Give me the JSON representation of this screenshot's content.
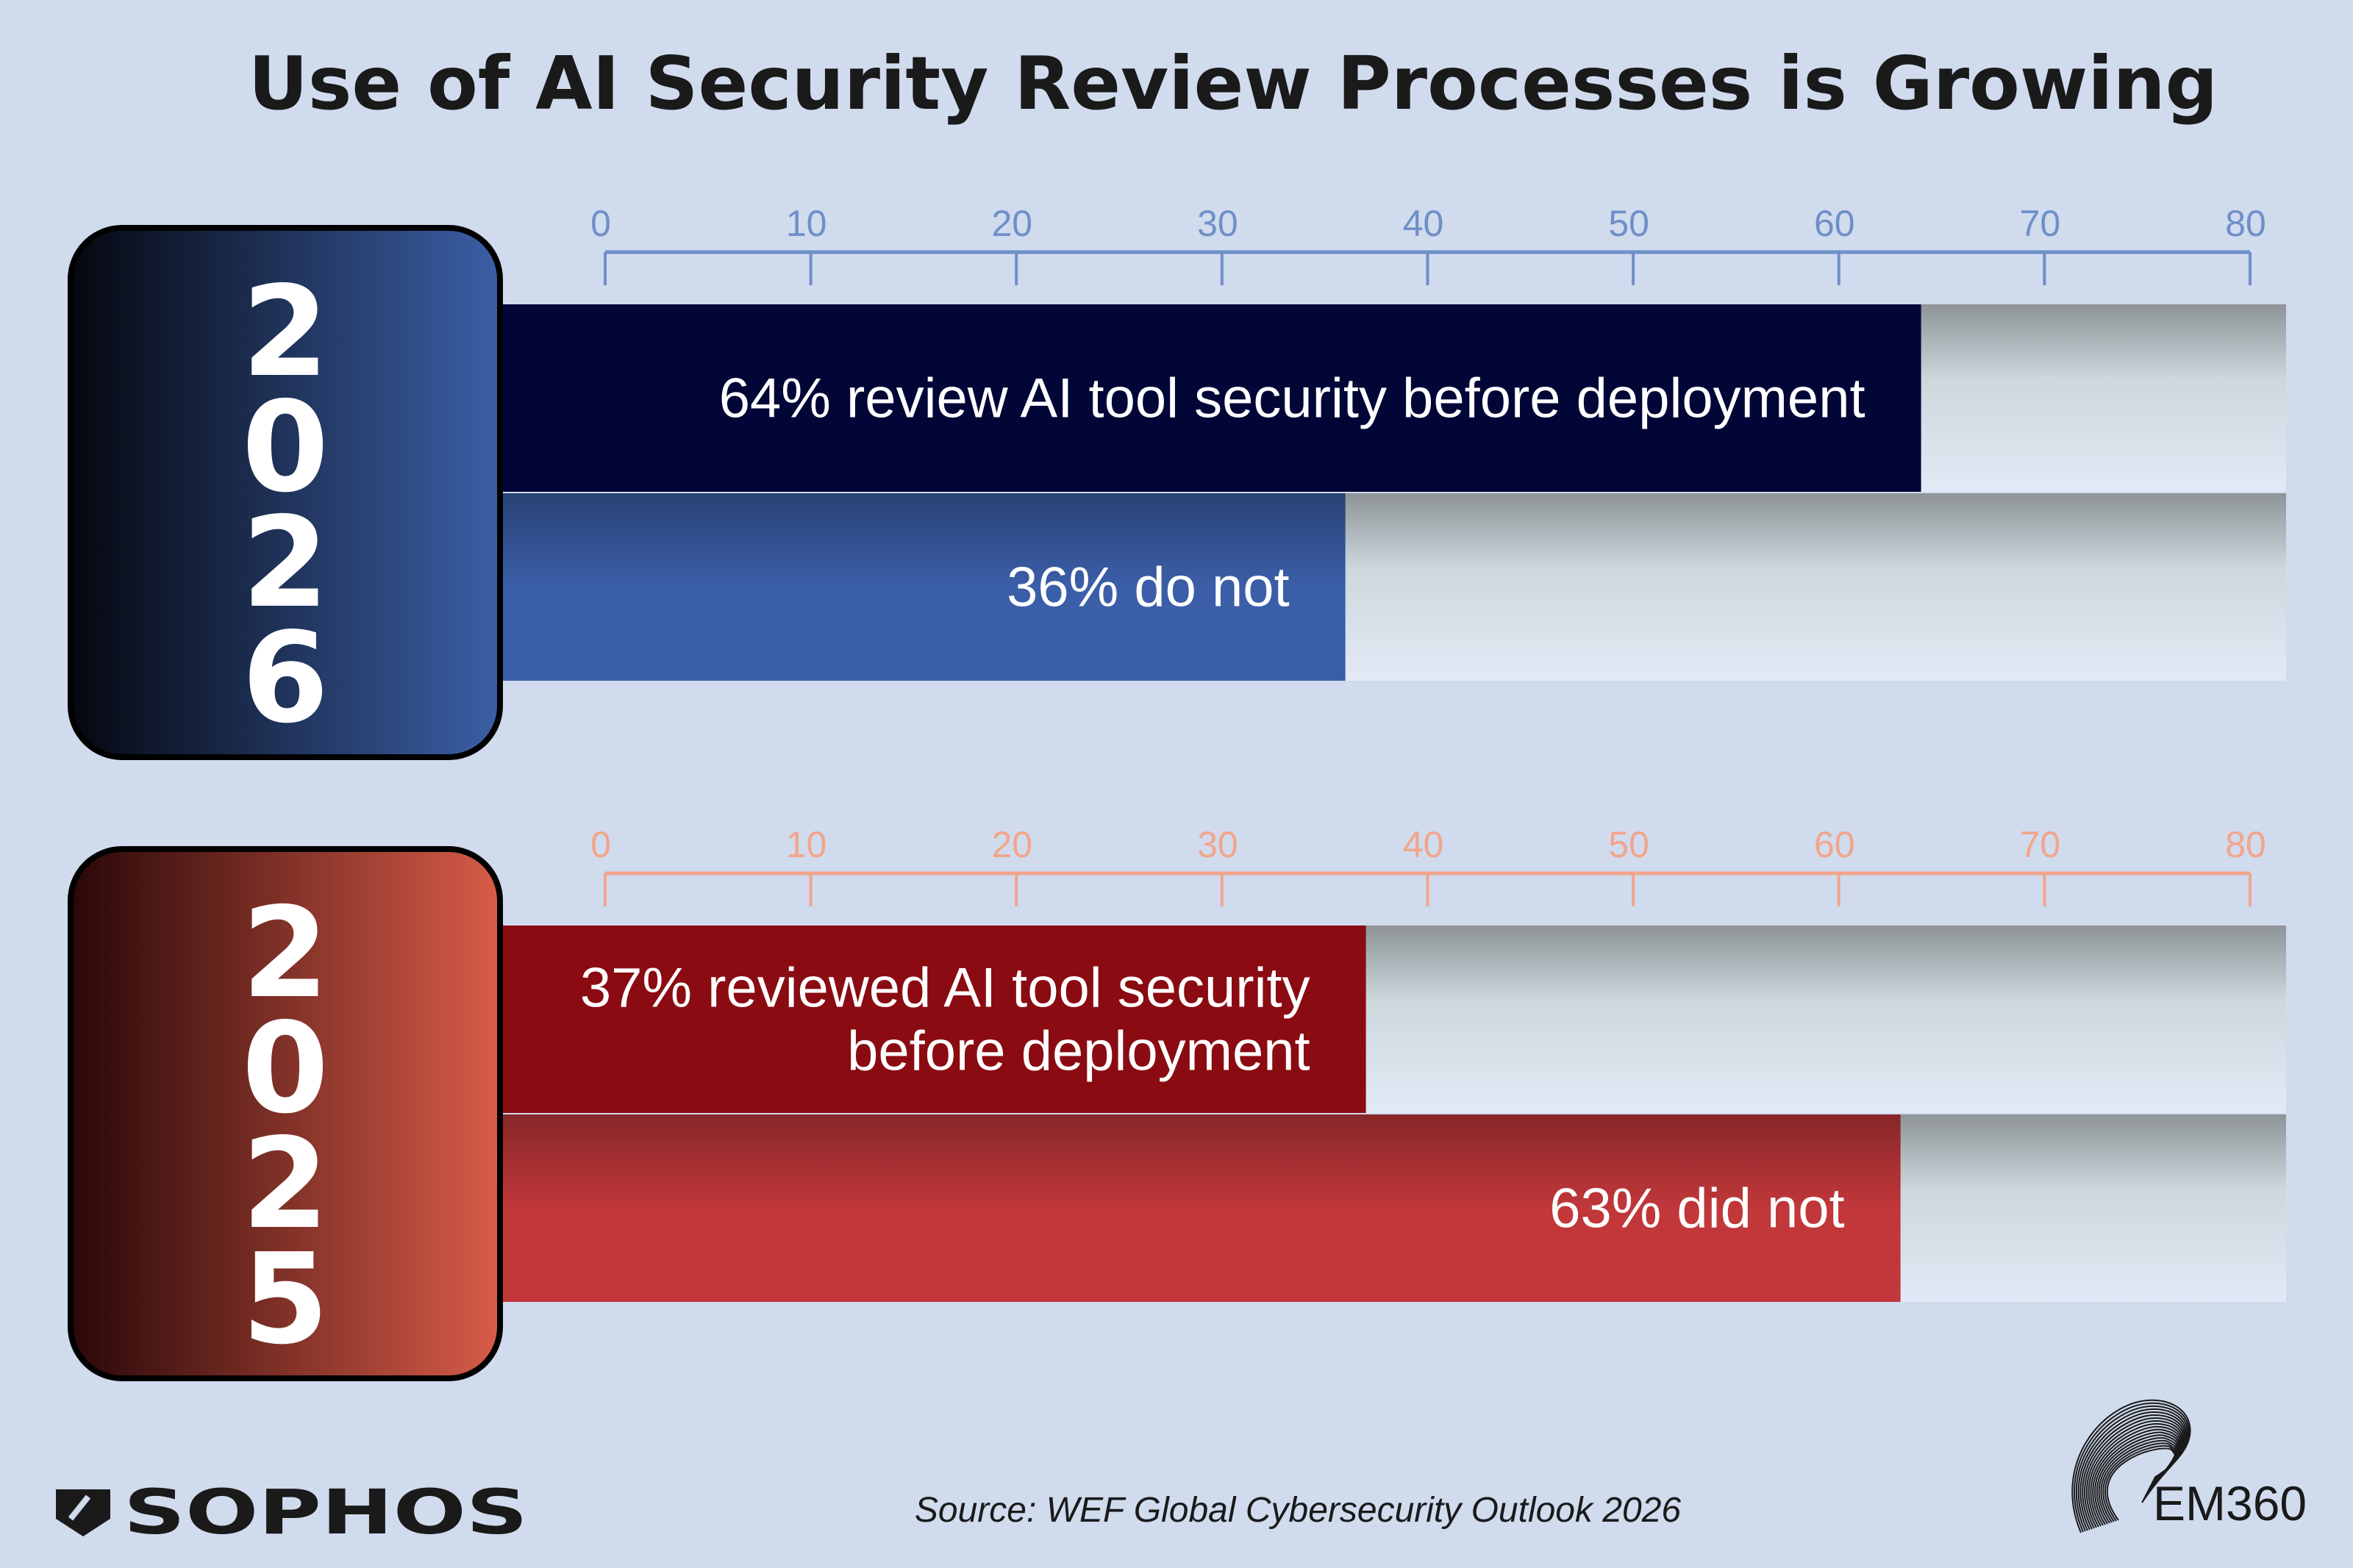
{
  "chart_data": {
    "type": "bar",
    "title": "Use of AI Security Review Processes is Growing",
    "xlim": [
      0,
      80
    ],
    "ticks": [
      "0",
      "10",
      "20",
      "30",
      "40",
      "50",
      "60",
      "70",
      "80"
    ],
    "grid": false,
    "groups": [
      {
        "year": "2026",
        "axis_color": "#6f8fc8",
        "card_colors": [
          "#05070f",
          "#3b5fa6"
        ],
        "bars": [
          {
            "value": 64,
            "label": [
              "64% review AI tool security before deployment"
            ],
            "color": "#020637"
          },
          {
            "value": 36,
            "label": [
              "36% do not"
            ],
            "color": "#3b5ea8"
          }
        ]
      },
      {
        "year": "2025",
        "axis_color": "#f2a58b",
        "card_colors": [
          "#2a0708",
          "#d85c48"
        ],
        "bars": [
          {
            "value": 37,
            "label": [
              "37% reviewed AI tool security",
              "before deployment"
            ],
            "color": "#8a0b12"
          },
          {
            "value": 63,
            "label": [
              "63% did not"
            ],
            "color": "#c1373a"
          }
        ]
      }
    ]
  },
  "footer": {
    "source": "Source: WEF Global Cybersecurity Outlook 2026",
    "sophos_logo": "SOPHOS",
    "em360_logo": "EM360"
  }
}
